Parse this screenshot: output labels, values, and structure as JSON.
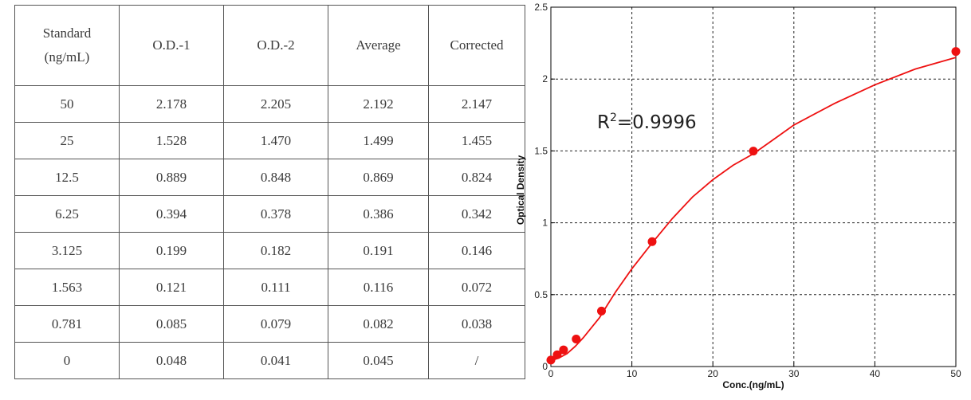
{
  "table": {
    "headers": {
      "standard_line1": "Standard",
      "standard_line2": "(ng/mL)",
      "od1": "O.D.-1",
      "od2": "O.D.-2",
      "average": "Average",
      "corrected": "Corrected"
    },
    "rows": [
      [
        "50",
        "2.178",
        "2.205",
        "2.192",
        "2.147"
      ],
      [
        "25",
        "1.528",
        "1.470",
        "1.499",
        "1.455"
      ],
      [
        "12.5",
        "0.889",
        "0.848",
        "0.869",
        "0.824"
      ],
      [
        "6.25",
        "0.394",
        "0.378",
        "0.386",
        "0.342"
      ],
      [
        "3.125",
        "0.199",
        "0.182",
        "0.191",
        "0.146"
      ],
      [
        "1.563",
        "0.121",
        "0.111",
        "0.116",
        "0.072"
      ],
      [
        "0.781",
        "0.085",
        "0.079",
        "0.082",
        "0.038"
      ],
      [
        "0",
        "0.048",
        "0.041",
        "0.045",
        "/"
      ]
    ]
  },
  "chart_data": {
    "type": "scatter",
    "xlabel": "Conc.(ng/mL)",
    "ylabel": "Optical Density",
    "xlim": [
      0,
      50
    ],
    "ylim": [
      0,
      2.5
    ],
    "xticks": [
      0,
      10,
      20,
      30,
      40,
      50
    ],
    "xtick_labels": [
      "0",
      "10",
      "20",
      "30",
      "40",
      "50"
    ],
    "yticks": [
      0,
      0.5,
      1,
      1.5,
      2,
      2.5
    ],
    "ytick_labels": [
      "0",
      "0.5",
      "1",
      "1.5",
      "2",
      "2.5"
    ],
    "grid": true,
    "annotation_prefix": "R",
    "annotation_sup": "2",
    "annotation_suffix": "=0.9996",
    "point_color": "#ee1111",
    "line_color": "#ee1111",
    "points": [
      {
        "x": 0,
        "y": 0.045
      },
      {
        "x": 0.781,
        "y": 0.082
      },
      {
        "x": 1.563,
        "y": 0.116
      },
      {
        "x": 3.125,
        "y": 0.191
      },
      {
        "x": 6.25,
        "y": 0.386
      },
      {
        "x": 12.5,
        "y": 0.869
      },
      {
        "x": 25,
        "y": 1.499
      },
      {
        "x": 50,
        "y": 2.192
      }
    ],
    "curve": [
      {
        "x": 0,
        "y": 0.04
      },
      {
        "x": 1,
        "y": 0.06
      },
      {
        "x": 2,
        "y": 0.09
      },
      {
        "x": 3,
        "y": 0.14
      },
      {
        "x": 4,
        "y": 0.2
      },
      {
        "x": 5,
        "y": 0.27
      },
      {
        "x": 6,
        "y": 0.34
      },
      {
        "x": 7,
        "y": 0.43
      },
      {
        "x": 8,
        "y": 0.52
      },
      {
        "x": 10,
        "y": 0.68
      },
      {
        "x": 12.5,
        "y": 0.86
      },
      {
        "x": 15,
        "y": 1.03
      },
      {
        "x": 17.5,
        "y": 1.18
      },
      {
        "x": 20,
        "y": 1.3
      },
      {
        "x": 22.5,
        "y": 1.4
      },
      {
        "x": 25,
        "y": 1.48
      },
      {
        "x": 27.5,
        "y": 1.58
      },
      {
        "x": 30,
        "y": 1.68
      },
      {
        "x": 35,
        "y": 1.83
      },
      {
        "x": 40,
        "y": 1.96
      },
      {
        "x": 45,
        "y": 2.07
      },
      {
        "x": 50,
        "y": 2.15
      }
    ]
  }
}
